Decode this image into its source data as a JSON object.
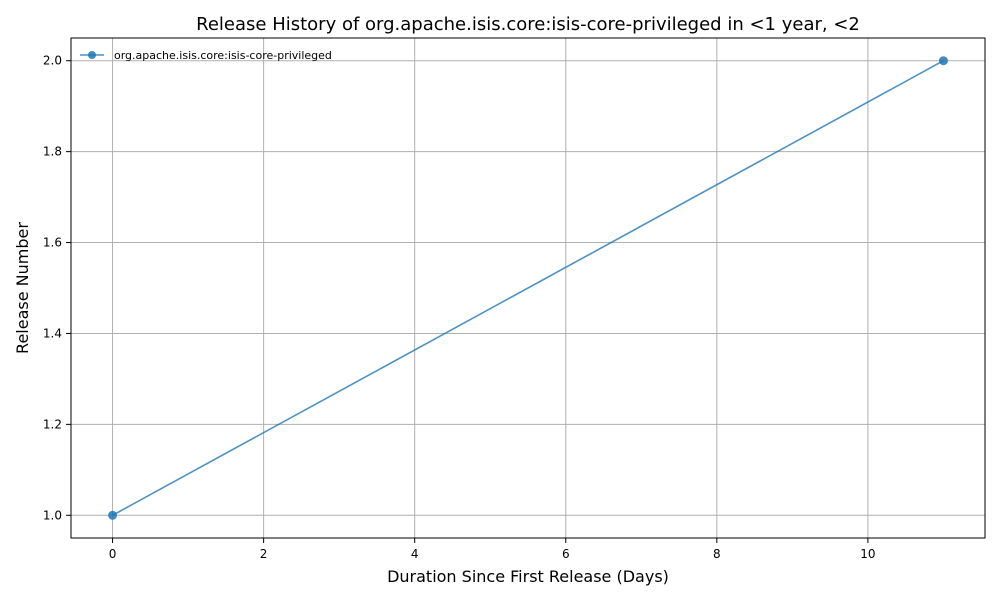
{
  "chart_data": {
    "type": "line",
    "title": "Release History of org.apache.isis.core:isis-core-privileged in <1 year, <2",
    "xlabel": "Duration Since First Release (Days)",
    "ylabel": "Release Number",
    "xlim": [
      -0.55,
      11.55
    ],
    "ylim": [
      0.95,
      2.05
    ],
    "xticks": [
      0,
      2,
      4,
      6,
      8,
      10
    ],
    "yticks": [
      1.0,
      1.2,
      1.4,
      1.6,
      1.8,
      2.0
    ],
    "xtick_labels": [
      "0",
      "2",
      "4",
      "6",
      "8",
      "10"
    ],
    "ytick_labels": [
      "1.0",
      "1.2",
      "1.4",
      "1.6",
      "1.8",
      "2.0"
    ],
    "grid": true,
    "legend_position": "top-left",
    "series": [
      {
        "name": "org.apache.isis.core:isis-core-privileged",
        "color": "#1f77b4",
        "x": [
          0,
          11
        ],
        "y": [
          1,
          2
        ]
      }
    ]
  }
}
